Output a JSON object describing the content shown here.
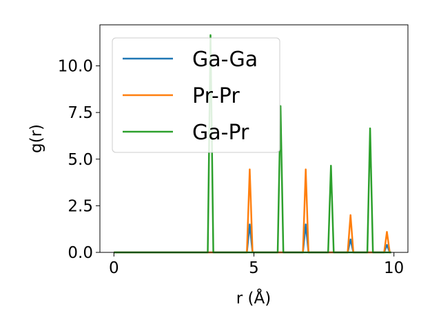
{
  "chart_data": {
    "type": "line",
    "xlabel": "r (Å)",
    "ylabel": "g(r)",
    "xlim": [
      -0.5,
      10.5
    ],
    "ylim": [
      0,
      12.2
    ],
    "xticks": [
      "0",
      "5",
      "10"
    ],
    "yticks": [
      "0.0",
      "2.5",
      "5.0",
      "7.5",
      "10.0"
    ],
    "legend_position": "top-left",
    "grid": false,
    "series": [
      {
        "name": "Ga-Ga",
        "color": "#1f77b4",
        "x": [
          0,
          4.75,
          4.85,
          4.95,
          6.75,
          6.85,
          6.95,
          8.35,
          8.45,
          8.55,
          9.65,
          9.75,
          9.85,
          9.9
        ],
        "y": [
          0,
          0,
          1.5,
          0,
          0,
          1.5,
          0,
          0,
          0.7,
          0,
          0,
          0.4,
          0,
          0
        ]
      },
      {
        "name": "Pr-Pr",
        "color": "#ff7f0e",
        "x": [
          0,
          4.75,
          4.85,
          4.95,
          6.75,
          6.85,
          6.95,
          8.35,
          8.45,
          8.55,
          9.65,
          9.75,
          9.85,
          9.9
        ],
        "y": [
          0,
          0,
          4.45,
          0,
          0,
          4.45,
          0,
          0,
          2.0,
          0,
          0,
          1.1,
          0,
          0
        ]
      },
      {
        "name": "Ga-Pr",
        "color": "#2ca02c",
        "x": [
          0,
          3.35,
          3.45,
          3.55,
          5.85,
          5.95,
          6.05,
          7.65,
          7.75,
          7.85,
          9.05,
          9.15,
          9.25,
          9.9
        ],
        "y": [
          0,
          0,
          11.65,
          0,
          0,
          7.85,
          0,
          0,
          4.65,
          0,
          0,
          6.65,
          0,
          0
        ]
      }
    ]
  }
}
